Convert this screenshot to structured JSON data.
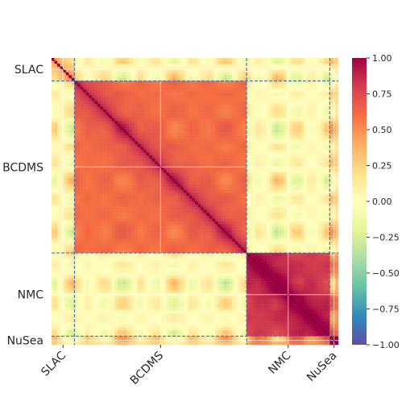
{
  "chart_data": {
    "type": "heatmap",
    "title": "",
    "xlabel": "",
    "ylabel": "",
    "matrix_size": 100,
    "groups": [
      {
        "name": "SLAC",
        "start": 0,
        "end": 8
      },
      {
        "name": "BCDMS",
        "start": 8,
        "end": 68
      },
      {
        "name": "NMC",
        "start": 68,
        "end": 97
      },
      {
        "name": "NuSea",
        "start": 97,
        "end": 100
      }
    ],
    "block_correlation": [
      [
        0.15,
        0.1,
        0.05,
        0.3
      ],
      [
        0.1,
        0.6,
        0.05,
        0.35
      ],
      [
        0.05,
        0.05,
        0.8,
        0.9
      ],
      [
        0.3,
        0.35,
        0.9,
        0.85
      ]
    ],
    "diagonal": 1.0,
    "zlim": [
      -1.0,
      1.0
    ],
    "colorbar_ticks": [
      "1.00",
      "0.75",
      "0.50",
      "0.25",
      "0.00",
      "−0.25",
      "−0.50",
      "−0.75",
      "−1.00"
    ],
    "colorbar_values": [
      1.0,
      0.75,
      0.5,
      0.25,
      0.0,
      -0.25,
      -0.5,
      -0.75,
      -1.0
    ],
    "colormap": "Spectral_r",
    "colormap_stops": [
      "#5e4fa2",
      "#3288bd",
      "#66c2a5",
      "#abdda4",
      "#e6f598",
      "#ffffbf",
      "#fee08b",
      "#fdae61",
      "#f46d43",
      "#d53e4f",
      "#9e0142"
    ],
    "grid": true,
    "separator_color": "#4c72b0"
  }
}
